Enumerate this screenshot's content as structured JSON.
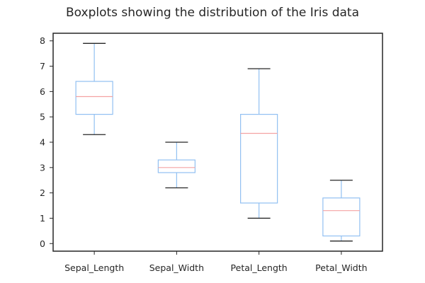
{
  "chart_data": {
    "type": "boxplot",
    "title": "Boxplots showing the distribution of the Iris data",
    "categories": [
      "Sepal_Length",
      "Sepal_Width",
      "Petal_Length",
      "Petal_Width"
    ],
    "boxes": [
      {
        "whisker_low": 4.3,
        "q1": 5.1,
        "median": 5.8,
        "q3": 6.4,
        "whisker_high": 7.9
      },
      {
        "whisker_low": 2.2,
        "q1": 2.8,
        "median": 3.0,
        "q3": 3.3,
        "whisker_high": 4.0
      },
      {
        "whisker_low": 1.0,
        "q1": 1.6,
        "median": 4.35,
        "q3": 5.1,
        "whisker_high": 6.9
      },
      {
        "whisker_low": 0.1,
        "q1": 0.3,
        "median": 1.3,
        "q3": 1.8,
        "whisker_high": 2.5
      }
    ],
    "ylim": [
      -0.3,
      8.3
    ],
    "yticks": [
      0,
      1,
      2,
      3,
      4,
      5,
      6,
      7,
      8
    ],
    "grid": false,
    "colors": {
      "box": "#92c0f2",
      "median": "#f4a3a3",
      "cap": "#262626",
      "axis": "#262626"
    }
  }
}
